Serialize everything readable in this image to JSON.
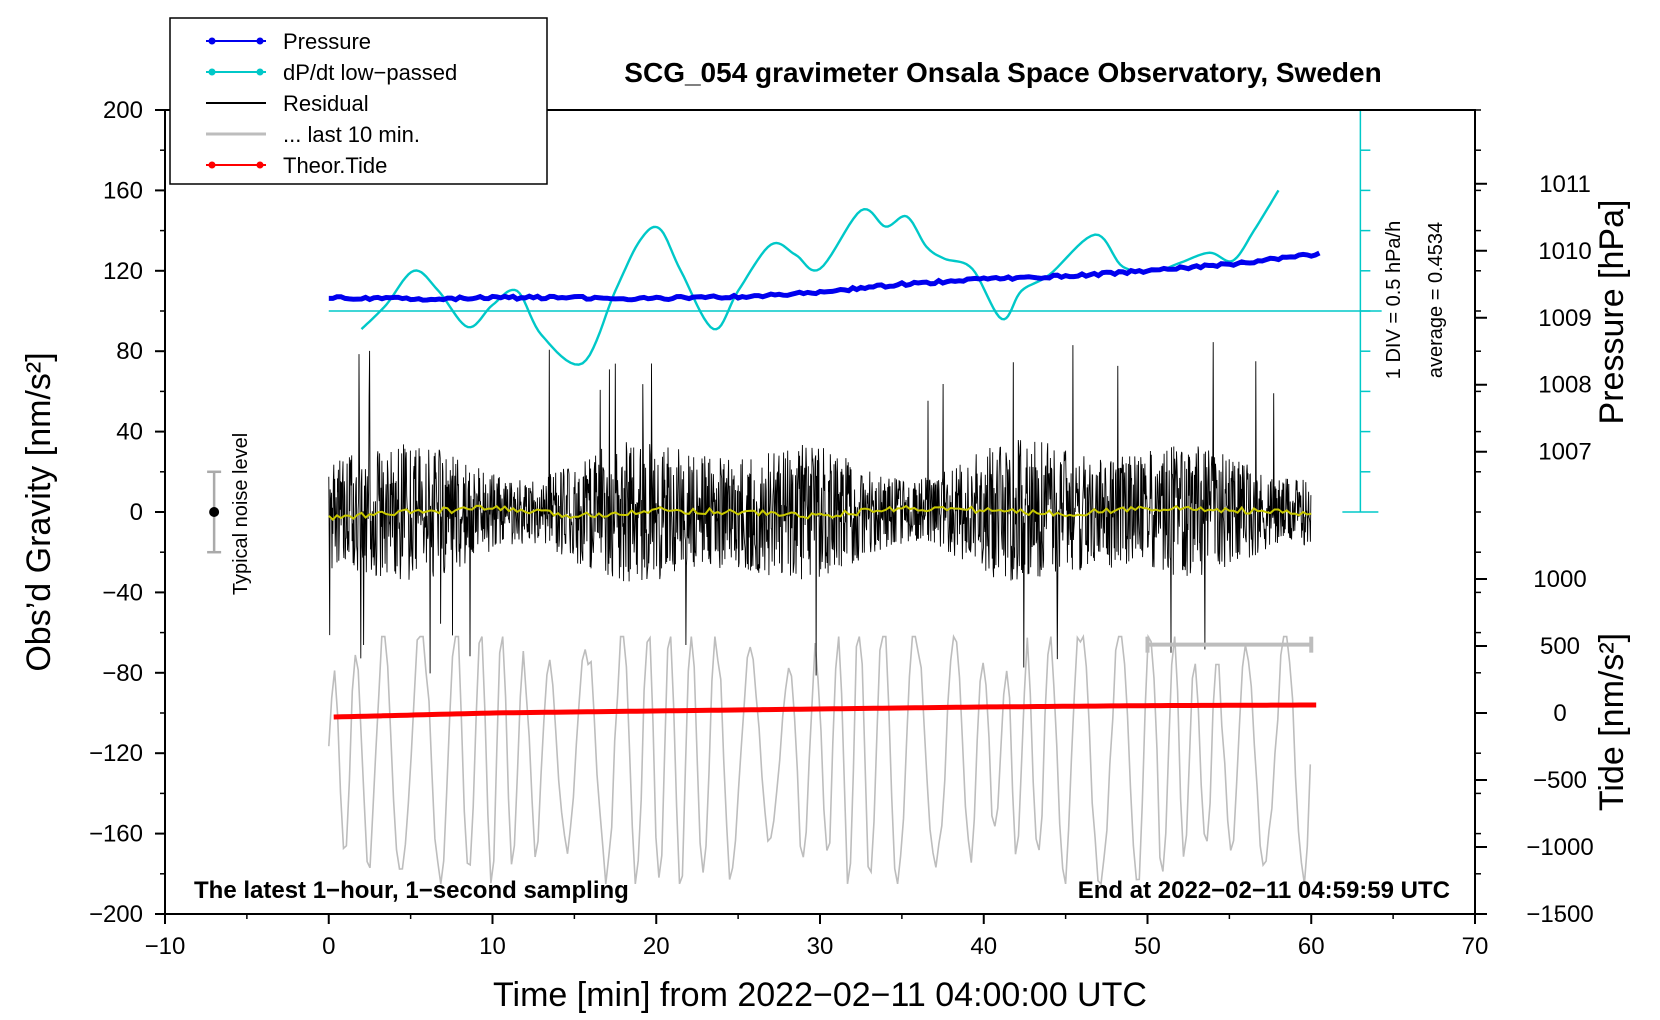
{
  "chart_data": {
    "type": "line",
    "title": "SCG_054 gravimeter Onsala Space Observatory, Sweden",
    "xlabel": "Time [min] from 2022−02−11 04:00:00 UTC",
    "ylabel_left": "Obs’d Gravity [nm/s²]",
    "ylabel_right_top": "Pressure [hPa]",
    "ylabel_right_bottom": "Tide [nm/s²]",
    "xlim": [
      -10,
      70
    ],
    "ylim": [
      -200,
      200
    ],
    "x_ticks": [
      -10,
      0,
      10,
      20,
      30,
      40,
      50,
      60,
      70
    ],
    "x_tick_labels": [
      "−10",
      "0",
      "10",
      "20",
      "30",
      "40",
      "50",
      "60",
      "70"
    ],
    "y_ticks": [
      -200,
      -160,
      -120,
      -80,
      -40,
      0,
      40,
      80,
      120,
      160,
      200
    ],
    "y_tick_labels": [
      "−200",
      "−160",
      "−120",
      "−80",
      "−40",
      "0",
      "40",
      "80",
      "120",
      "160",
      "200"
    ],
    "pressure_axis": {
      "ticks": [
        1007,
        1008,
        1009,
        1010,
        1011
      ],
      "tick_labels": [
        "1007",
        "1008",
        "1009",
        "1010",
        "1011"
      ],
      "gravity_per_hPa": 33.33,
      "zero_hPa_at_gravity": -33533.33
    },
    "tide_axis": {
      "ticks": [
        -1500,
        -1000,
        -500,
        0,
        500,
        1000
      ],
      "tick_labels": [
        "−1500",
        "−1000",
        "−500",
        "0",
        "500",
        "1000"
      ],
      "gravity_per_unit": 0.06667,
      "zero_at_gravity": -100
    },
    "dpdt_scale": {
      "label_div": "1 DIV = 0.5 hPa/h",
      "label_avg": "average = 0.4534",
      "x_position": 63,
      "baseline_gravity": 100,
      "bottom_gravity": 0,
      "top_gravity": 200,
      "div_gravity": 20
    },
    "annotations": {
      "bottom_left": "The latest 1−hour, 1−second sampling",
      "bottom_right": "End at 2022−02−11 04:59:59 UTC",
      "noise_label": "Typical noise level",
      "noise_x": -7,
      "noise_range": [
        -20,
        20
      ],
      "last10_bar": {
        "x_start": 50,
        "x_end": 60,
        "y": -66
      }
    },
    "legend": [
      {
        "label": "Pressure",
        "color": "#0000ee",
        "marker": true
      },
      {
        "label": "dP/dt low−passed",
        "color": "#00c8c8",
        "marker": true
      },
      {
        "label": "Residual",
        "color": "#000000",
        "marker": false
      },
      {
        "label": "... last 10 min.",
        "color": "#bdbdbd",
        "marker": false
      },
      {
        "label": "Theor.Tide",
        "color": "#ff0000",
        "marker": true
      }
    ],
    "series": [
      {
        "name": "Pressure",
        "color": "#0000ee",
        "unit": "hPa",
        "x": [
          0,
          5,
          10,
          15,
          18,
          22,
          26,
          30,
          35,
          40,
          45,
          50,
          55,
          60.5
        ],
        "values": [
          1009.3,
          1009.28,
          1009.3,
          1009.3,
          1009.28,
          1009.3,
          1009.32,
          1009.38,
          1009.5,
          1009.58,
          1009.62,
          1009.7,
          1009.8,
          1009.95
        ]
      },
      {
        "name": "dP/dt low−passed",
        "color": "#00c8c8",
        "unit": "gravity axis units",
        "x": [
          2,
          3.5,
          5.2,
          6.7,
          8.5,
          10,
          11.5,
          13,
          15.5,
          17.5,
          19,
          20.2,
          21.5,
          23.5,
          25,
          27,
          28.5,
          30,
          32.5,
          34,
          35.3,
          36.5,
          37.6,
          39.3,
          41.1,
          42.3,
          44,
          46.8,
          48.5,
          50.5,
          52,
          53.8,
          55.2,
          56.5,
          58
        ],
        "values": [
          91,
          103,
          120,
          110,
          92,
          103,
          110,
          88,
          74,
          110,
          135,
          141,
          120,
          91,
          110,
          133,
          128,
          121,
          150,
          142,
          147,
          132,
          126,
          121,
          96,
          110,
          118,
          138,
          122,
          120,
          124,
          129,
          125,
          140,
          160
        ]
      },
      {
        "name": "Residual",
        "color": "#000000",
        "description": "noisy residual centered near 0, amplitude about ±40 with spikes to ±80"
      },
      {
        "name": "Residual smoothed",
        "color": "#c8c800",
        "x": [
          0,
          5,
          10,
          15,
          20,
          25,
          30,
          35,
          40,
          45,
          50,
          55,
          60
        ],
        "values": [
          -3,
          0,
          2,
          -2,
          1,
          0,
          -2,
          2,
          1,
          -1,
          2,
          1,
          -1
        ]
      },
      {
        "name": "... last 10 min.",
        "color": "#bdbdbd",
        "description": "oscillating trace between about −180 and −60"
      },
      {
        "name": "Theor.Tide",
        "color": "#ff0000",
        "unit": "nm/s²",
        "x": [
          0.3,
          10,
          20,
          30,
          40,
          50,
          60.5
        ],
        "values": [
          -30,
          0,
          15,
          30,
          45,
          55,
          60
        ]
      }
    ]
  }
}
